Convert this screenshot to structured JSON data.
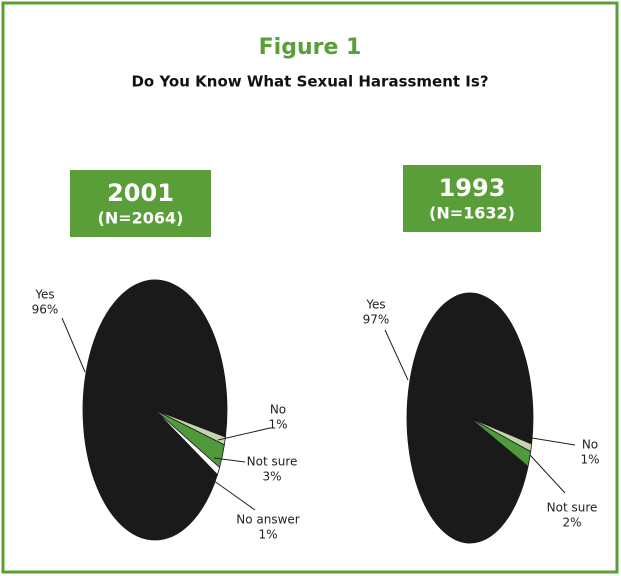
{
  "title": "Figure 1",
  "subtitle": "Do You Know What Sexual Harassment Is?",
  "chart_data": [
    {
      "type": "pie",
      "title": "2001",
      "subtitle": "(N=2064)",
      "categories": [
        "Yes",
        "No",
        "Not sure",
        "No answer"
      ],
      "values": [
        96,
        1,
        3,
        1
      ],
      "value_labels": [
        "96%",
        "1%",
        "3%",
        "1%"
      ],
      "colors": [
        "#1a1a1a",
        "#c5d4ad",
        "#4f9a3c",
        "#ffffff"
      ]
    },
    {
      "type": "pie",
      "title": "1993",
      "subtitle": "(N=1632)",
      "categories": [
        "Yes",
        "No",
        "Not sure"
      ],
      "values": [
        97,
        1,
        2
      ],
      "value_labels": [
        "97%",
        "1%",
        "2%"
      ],
      "colors": [
        "#1a1a1a",
        "#c5d4ad",
        "#4f9a3c"
      ]
    }
  ]
}
